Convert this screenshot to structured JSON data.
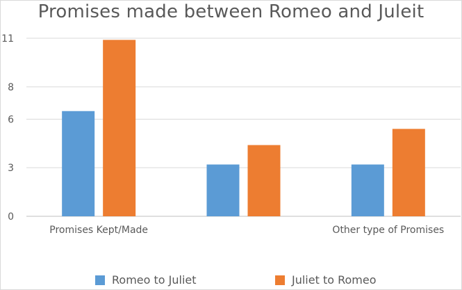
{
  "chart_data": {
    "type": "bar",
    "title": "Promises made between Romeo and Juleit",
    "categories": [
      "Promises Kept/Made",
      "",
      "Other type of Promises"
    ],
    "yticks": [
      "0",
      "3",
      "6",
      "8",
      "11"
    ],
    "ylim": [
      0,
      11
    ],
    "grid": true,
    "legend_position": "bottom",
    "series": [
      {
        "name": "Romeo to Juliet",
        "color": "#5b9bd5",
        "values": [
          6.5,
          3.2,
          3.2
        ]
      },
      {
        "name": "Juliet to Romeo",
        "color": "#ed7d31",
        "values": [
          10.9,
          4.4,
          5.4
        ]
      }
    ]
  }
}
